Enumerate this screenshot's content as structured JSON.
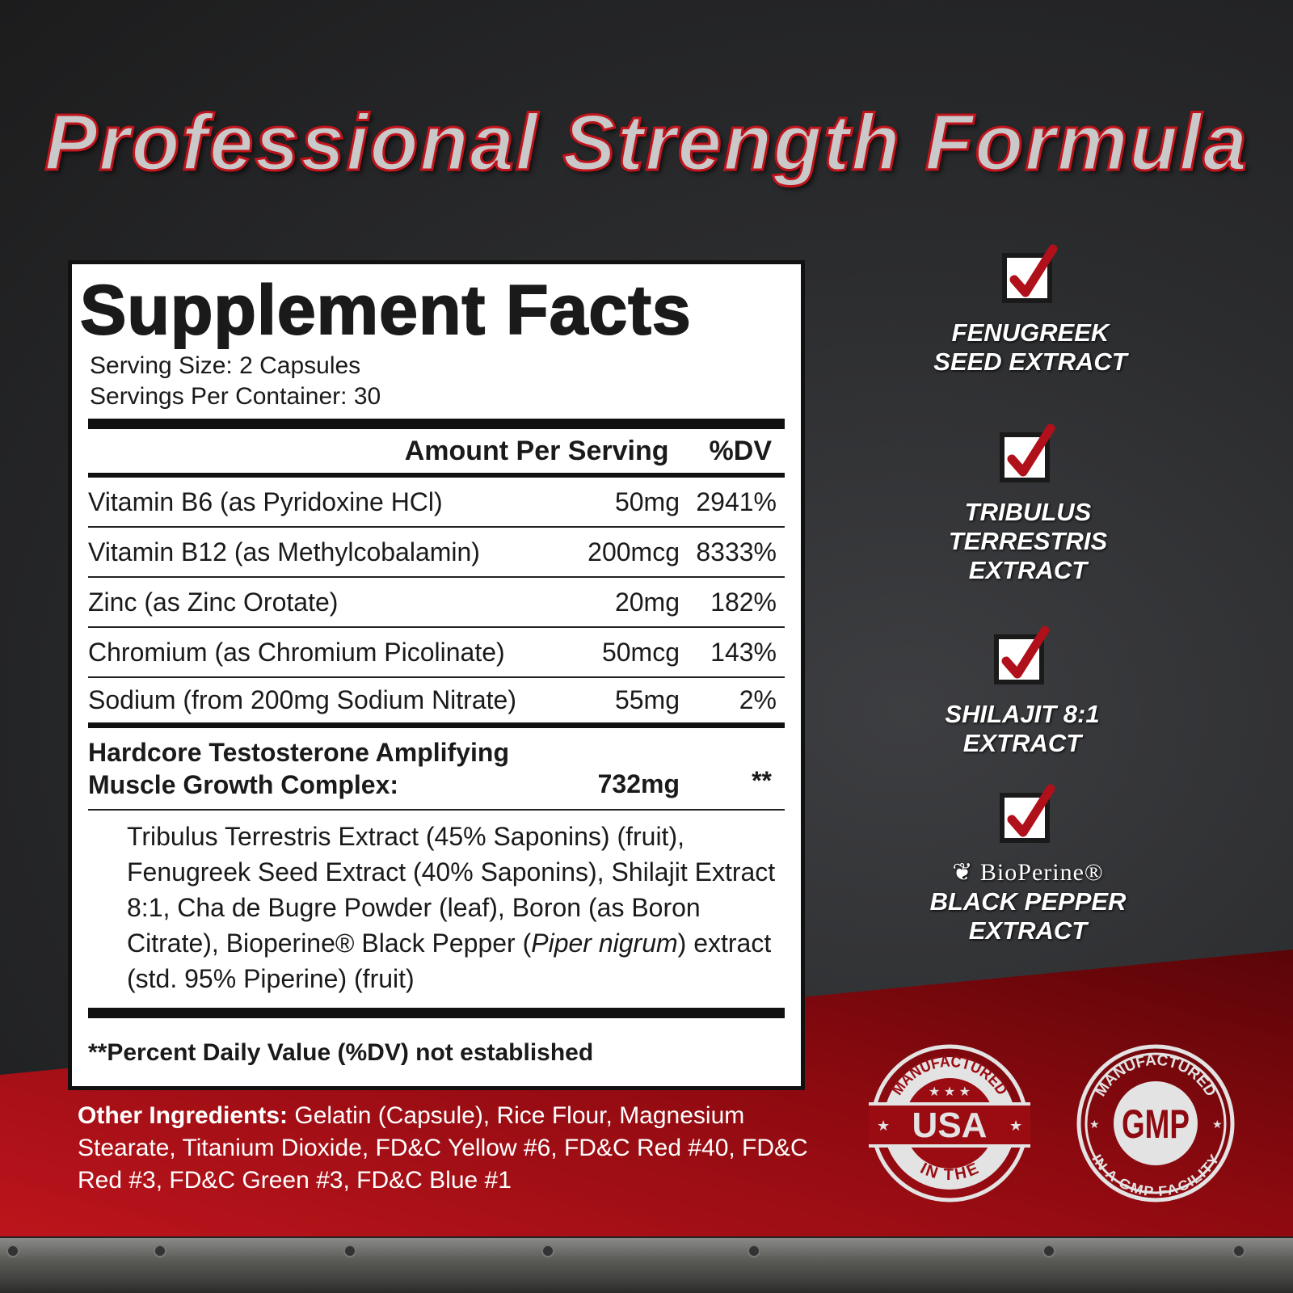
{
  "headline": "Professional Strength Formula",
  "facts": {
    "title": "Supplement Facts",
    "serving_size": "Serving Size: 2 Capsules",
    "servings_per_container": "Servings Per Container: 30",
    "col_amount": "Amount Per Serving",
    "col_dv": "%DV",
    "rows": [
      {
        "name": "Vitamin B6 (as Pyridoxine HCl)",
        "amount": "50mg",
        "dv": "2941%"
      },
      {
        "name": "Vitamin B12 (as Methylcobalamin)",
        "amount": "200mcg",
        "dv": "8333%"
      },
      {
        "name": "Zinc (as Zinc Orotate)",
        "amount": "20mg",
        "dv": "182%"
      },
      {
        "name": "Chromium (as Chromium Picolinate)",
        "amount": "50mcg",
        "dv": "143%"
      },
      {
        "name": "Sodium (from 200mg Sodium Nitrate)",
        "amount": "55mg",
        "dv": "2%"
      }
    ],
    "complex": {
      "line1": "Hardcore Testosterone Amplifying",
      "line2": "Muscle Growth Complex:",
      "amount": "732mg",
      "dv": "**"
    },
    "blend_a": "Tribulus Terrestris Extract (45% Saponins) (fruit), Fenugreek Seed Extract (40% Saponins), Shilajit Extract 8:1, Cha de Bugre Powder (leaf), Boron (as Boron Citrate), Bioperine® Black Pepper (",
    "blend_italic": "Piper nigrum",
    "blend_b": ") extract (std. 95% Piperine) (fruit)",
    "footnote": "**Percent Daily Value (%DV) not established"
  },
  "other": {
    "label": "Other Ingredients:",
    "text": " Gelatin (Capsule), Rice Flour, Magnesium Stearate, Titanium Dioxide, FD&C Yellow #6, FD&C Red #40, FD&C Red #3, FD&C Green #3, FD&C Blue #1"
  },
  "features": [
    {
      "line1": "FENUGREEK",
      "line2": "SEED EXTRACT",
      "icon": "checkbox-checked-icon"
    },
    {
      "line1": "TRIBULUS",
      "line2": "TERRESTRIS",
      "line3": "EXTRACT",
      "icon": "checkbox-checked-icon"
    },
    {
      "line1": "SHILAJIT 8:1",
      "line2": "EXTRACT",
      "icon": "checkbox-checked-icon"
    },
    {
      "brand": "BioPerine®",
      "line1": "BLACK PEPPER",
      "line2": "EXTRACT",
      "icon": "checkbox-checked-icon"
    }
  ],
  "seals": {
    "usa": {
      "top": "MANUFACTURED",
      "center": "USA",
      "bottom": "IN THE"
    },
    "gmp": {
      "top": "MANUFACTURED",
      "center": "GMP",
      "bottom": "IN A GMP FACILITY"
    }
  },
  "colors": {
    "accent": "#c0141c",
    "seal": "#e3e3e3",
    "background": "#2b2c2e"
  }
}
